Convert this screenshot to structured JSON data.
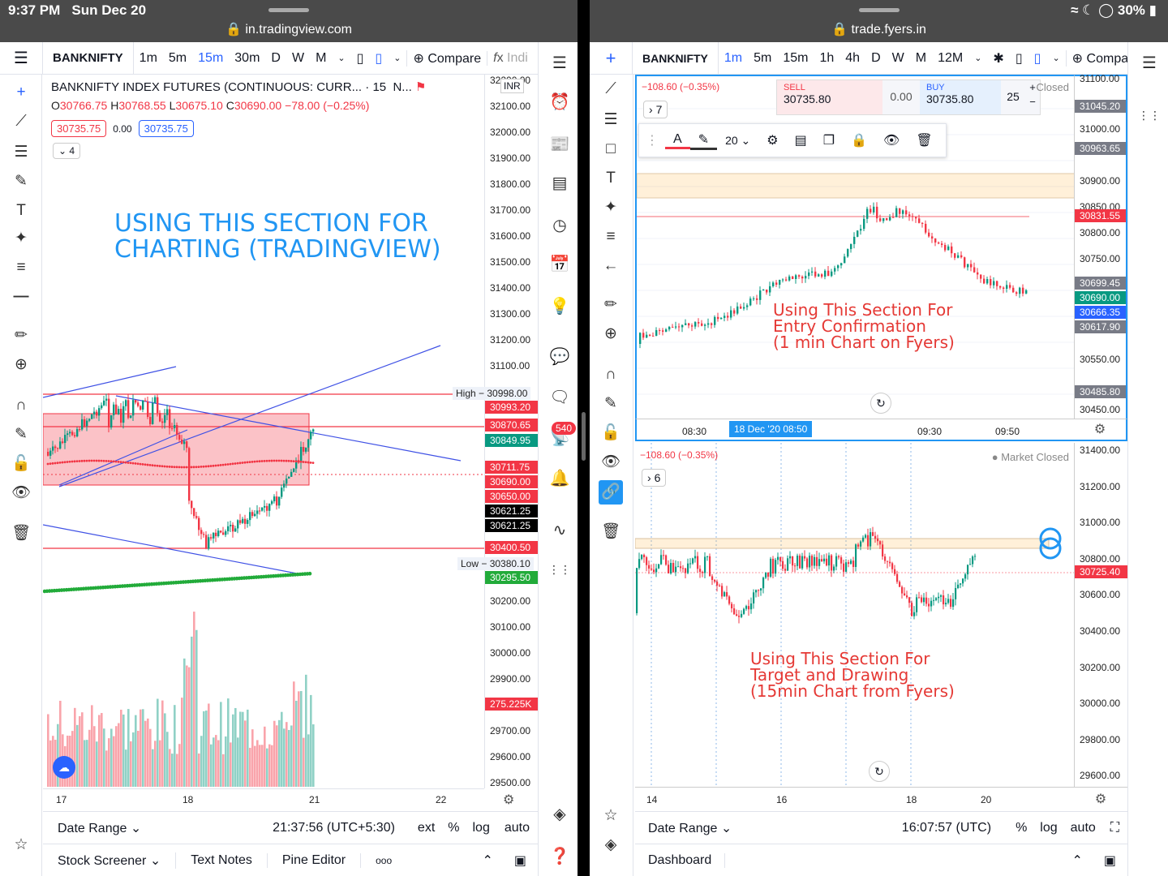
{
  "status": {
    "time": "9:37 PM",
    "date": "Sun Dec 20",
    "battery": "30%"
  },
  "left": {
    "url": "in.tradingview.com",
    "symbol": "BANKNIFTY",
    "intervals": [
      "1m",
      "5m",
      "15m",
      "30m",
      "D",
      "W",
      "M"
    ],
    "active_interval": "15m",
    "compare": "Compare",
    "indicators": "Indi",
    "title": "BANKNIFTY INDEX FUTURES (CONTINUOUS: CURR...",
    "title_interval": "15",
    "title_exchange": "N...",
    "currency": "INR",
    "ohlc": {
      "o": "30766.75",
      "h": "30768.55",
      "l": "30675.10",
      "c": "30690.00",
      "chg": "−78.00 (−0.25%)"
    },
    "sell": "30735.75",
    "spread": "0.00",
    "buy": "30735.75",
    "legend_count": "4",
    "overlay": [
      "USING THIS SECTION FOR",
      "CHARTING (TRADINGVIEW)"
    ],
    "price_axis": [
      "32200.00",
      "32100.00",
      "32000.00",
      "31900.00",
      "31800.00",
      "31700.00",
      "31600.00",
      "31500.00",
      "31400.00",
      "31300.00",
      "31200.00",
      "31100.00",
      "30200.00",
      "30100.00",
      "30000.00",
      "29900.00",
      "29700.00",
      "29600.00",
      "29500.00"
    ],
    "high_label": "High",
    "high_value": "30998.00",
    "low_label": "Low",
    "low_value": "30380.10",
    "price_tags": [
      {
        "v": "30993.20",
        "c": "#f23645"
      },
      {
        "v": "30870.65",
        "c": "#f23645"
      },
      {
        "v": "30849.95",
        "c": "#089981"
      },
      {
        "v": "30711.75",
        "c": "#f23645"
      },
      {
        "v": "30690.00",
        "c": "#f23645"
      },
      {
        "v": "30650.00",
        "c": "#f23645"
      },
      {
        "v": "30621.25",
        "c": "#000000"
      },
      {
        "v": "30621.25",
        "c": "#000000"
      },
      {
        "v": "30400.50",
        "c": "#f23645"
      },
      {
        "v": "30295.50",
        "c": "#22ab3a"
      }
    ],
    "volume_tag": "275.225K",
    "badge": "540",
    "time_axis": [
      "17",
      "18",
      "21",
      "22"
    ],
    "date_range": "Date Range",
    "clock": "21:37:56 (UTC+5:30)",
    "axis_opts": [
      "ext",
      "%",
      "log",
      "auto"
    ],
    "bottom_tabs": [
      "Stock Screener",
      "Text Notes",
      "Pine Editor"
    ],
    "more": "ooo"
  },
  "right": {
    "url": "trade.fyers.in",
    "symbol": "BANKNIFTY",
    "intervals": [
      "1m",
      "5m",
      "15m",
      "1h",
      "4h",
      "D",
      "W",
      "M",
      "12M"
    ],
    "active_interval": "1m",
    "compare": "Compa",
    "top": {
      "change": "−108.60 (−0.35%)",
      "legend_count": "7",
      "sell_label": "SELL",
      "sell": "30735.80",
      "spread": "0.00",
      "buy_label": "BUY",
      "buy": "30735.80",
      "qty": "25",
      "closed": "Closed",
      "line_width": "20",
      "overlay": [
        "Using This Section For",
        "Entry Confirmation",
        "(1 min Chart on Fyers)"
      ],
      "price_axis": [
        "31100.00",
        "31000.00",
        "30900.00",
        "30850.00",
        "30800.00",
        "30750.00",
        "30550.00",
        "30450.00"
      ],
      "price_tags": [
        {
          "v": "31045.20",
          "c": "#787b86"
        },
        {
          "v": "30963.65",
          "c": "#787b86"
        },
        {
          "v": "30831.55",
          "c": "#f23645"
        },
        {
          "v": "30699.45",
          "c": "#787b86"
        },
        {
          "v": "30690.00",
          "c": "#089981"
        },
        {
          "v": "30666.35",
          "c": "#2962ff"
        },
        {
          "v": "30617.90",
          "c": "#787b86"
        },
        {
          "v": "30485.80",
          "c": "#787b86"
        }
      ],
      "time_axis": [
        "08:30",
        "09:30",
        "09:50"
      ],
      "crosshair_time": "18 Dec '20  08:50"
    },
    "bottom": {
      "change": "−108.60 (−0.35%)",
      "legend_count": "6",
      "market": "Market Closed",
      "overlay": [
        "Using This Section For",
        "Target and Drawing",
        "(15min Chart from Fyers)"
      ],
      "price_axis": [
        "31400.00",
        "31200.00",
        "31000.00",
        "30800.00",
        "30600.00",
        "30400.00",
        "30200.00",
        "30000.00",
        "29800.00",
        "29600.00"
      ],
      "price_tag": "30725.40",
      "time_axis": [
        "14",
        "16",
        "18",
        "20"
      ]
    },
    "date_range": "Date Range",
    "clock": "16:07:57 (UTC)",
    "axis_opts": [
      "%",
      "log",
      "auto"
    ],
    "dashboard": "Dashboard"
  }
}
